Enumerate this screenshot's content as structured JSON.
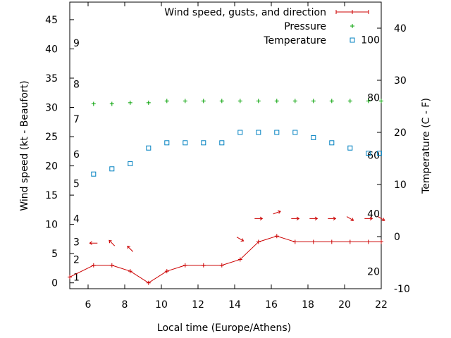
{
  "chart_data": {
    "type": "line",
    "xlabel": "Local time (Europe/Athens)",
    "ylabel_left": "Wind speed (kt - Beaufort)",
    "ylabel_right": "Temperature (C - F)",
    "xlim": [
      5,
      22
    ],
    "ylim_left": [
      -1,
      48
    ],
    "ylim_right": [
      -10,
      45
    ],
    "x_ticks": [
      6,
      8,
      10,
      12,
      14,
      16,
      18,
      20,
      22
    ],
    "y_ticks_left": [
      0,
      5,
      10,
      15,
      20,
      25,
      30,
      35,
      40,
      45
    ],
    "y_ticks_right": [
      -10,
      0,
      10,
      20,
      30,
      40
    ],
    "beaufort_labels": [
      {
        "text": "1",
        "kt": 1
      },
      {
        "text": "2",
        "kt": 4
      },
      {
        "text": "3",
        "kt": 7
      },
      {
        "text": "4",
        "kt": 11
      },
      {
        "text": "5",
        "kt": 17
      },
      {
        "text": "6",
        "kt": 22
      },
      {
        "text": "7",
        "kt": 28
      },
      {
        "text": "8",
        "kt": 34
      },
      {
        "text": "9",
        "kt": 41
      }
    ],
    "fahrenheit_labels": [
      {
        "text": "20",
        "temp_c": -6.7
      },
      {
        "text": "40",
        "temp_c": 4.4
      },
      {
        "text": "60",
        "temp_c": 15.6
      },
      {
        "text": "80",
        "temp_c": 26.7
      },
      {
        "text": "100",
        "temp_c": 37.8
      }
    ],
    "legend_position": "top-right",
    "grid": false,
    "series": [
      {
        "name": "Wind speed, gusts, and direction",
        "color": "#cc0000",
        "x": [
          5,
          6.3,
          7.3,
          8.3,
          9.3,
          10.3,
          11.3,
          12.3,
          13.3,
          14.3,
          15.3,
          16.3,
          17.3,
          18.3,
          19.3,
          20.3,
          21.3,
          22
        ],
        "y": [
          1,
          3,
          3,
          2,
          0,
          2,
          3,
          3,
          3,
          4,
          7,
          8,
          7,
          7,
          7,
          7,
          7,
          7
        ]
      },
      {
        "name": "Pressure",
        "color": "#00a000",
        "x": [
          6.3,
          7.3,
          8.3,
          9.3,
          10.3,
          11.3,
          12.3,
          13.3,
          14.3,
          15.3,
          16.3,
          17.3,
          18.3,
          19.3,
          20.3,
          21.3,
          22
        ],
        "y": [
          30.6,
          30.6,
          30.8,
          30.8,
          31.1,
          31.1,
          31.1,
          31.1,
          31.1,
          31.1,
          31.1,
          31.1,
          31.1,
          31.1,
          31.1,
          31.1,
          31.1
        ]
      },
      {
        "name": "Temperature",
        "color": "#0080c0",
        "x": [
          6.3,
          7.3,
          8.3,
          9.3,
          10.3,
          11.3,
          12.3,
          13.3,
          14.3,
          15.3,
          16.3,
          17.3,
          18.3,
          19.3,
          20.3,
          21.3,
          21.9
        ],
        "y": [
          12,
          13,
          14,
          17,
          18,
          18,
          18,
          18,
          20,
          20,
          20,
          20,
          19,
          18,
          17,
          16,
          16
        ]
      }
    ],
    "wind_direction": {
      "x": [
        6.3,
        7.3,
        8.3,
        14.3,
        15.3,
        16.3,
        17.3,
        18.3,
        19.3,
        20.3,
        21.3,
        22
      ],
      "y": [
        6.8,
        6.8,
        5.8,
        7.5,
        11,
        12,
        11,
        11,
        11,
        11,
        11,
        11
      ],
      "direction_deg": [
        90,
        135,
        135,
        300,
        270,
        250,
        270,
        270,
        270,
        300,
        270,
        300
      ]
    }
  }
}
